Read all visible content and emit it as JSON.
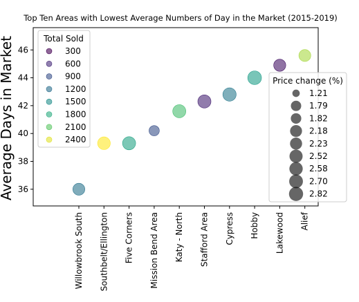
{
  "chart_data": {
    "type": "scatter",
    "title": "Top Ten Areas with Lowest Average Numbers of Day   in the Market (2015-2019)",
    "xlabel": "",
    "ylabel": "Average Days in Market",
    "ylim": [
      34.8,
      47.6
    ],
    "yticks": [
      36,
      38,
      40,
      42,
      44,
      46
    ],
    "grid": false,
    "categories": [
      "Willowbrook South",
      "Southbelt/Ellington",
      "Five Corners",
      "Mission Bend Area",
      "Katy - North",
      "Stafford Area",
      "Cypress",
      "Hobby",
      "Lakewood",
      "Alief"
    ],
    "values": [
      36.0,
      39.3,
      39.3,
      40.2,
      41.6,
      42.3,
      42.8,
      44.0,
      44.9,
      45.6
    ],
    "total_sold": [
      1250,
      2450,
      1720,
      900,
      2000,
      550,
      1300,
      1650,
      450,
      2300
    ],
    "price_change": [
      2.2,
      2.4,
      2.52,
      1.79,
      2.52,
      2.52,
      2.58,
      2.7,
      2.23,
      2.18
    ],
    "colormap": "viridis",
    "color_legend": {
      "title": "Total Sold",
      "placement": "upper-left",
      "entries": [
        {
          "label": "300",
          "value": 300
        },
        {
          "label": "600",
          "value": 600
        },
        {
          "label": "900",
          "value": 900
        },
        {
          "label": "1200",
          "value": 1200
        },
        {
          "label": "1500",
          "value": 1500
        },
        {
          "label": "1800",
          "value": 1800
        },
        {
          "label": "2100",
          "value": 2100
        },
        {
          "label": "2400",
          "value": 2400
        }
      ]
    },
    "size_legend": {
      "title": "Price change (%)",
      "placement": "right",
      "entries": [
        {
          "label": "1.21",
          "value": 1.21
        },
        {
          "label": "1.79",
          "value": 1.79
        },
        {
          "label": "1.82",
          "value": 1.82
        },
        {
          "label": "2.18",
          "value": 2.18
        },
        {
          "label": "2.23",
          "value": 2.23
        },
        {
          "label": "2.52",
          "value": 2.52
        },
        {
          "label": "2.58",
          "value": 2.58
        },
        {
          "label": "2.70",
          "value": 2.7
        },
        {
          "label": "2.82",
          "value": 2.82
        }
      ]
    }
  }
}
